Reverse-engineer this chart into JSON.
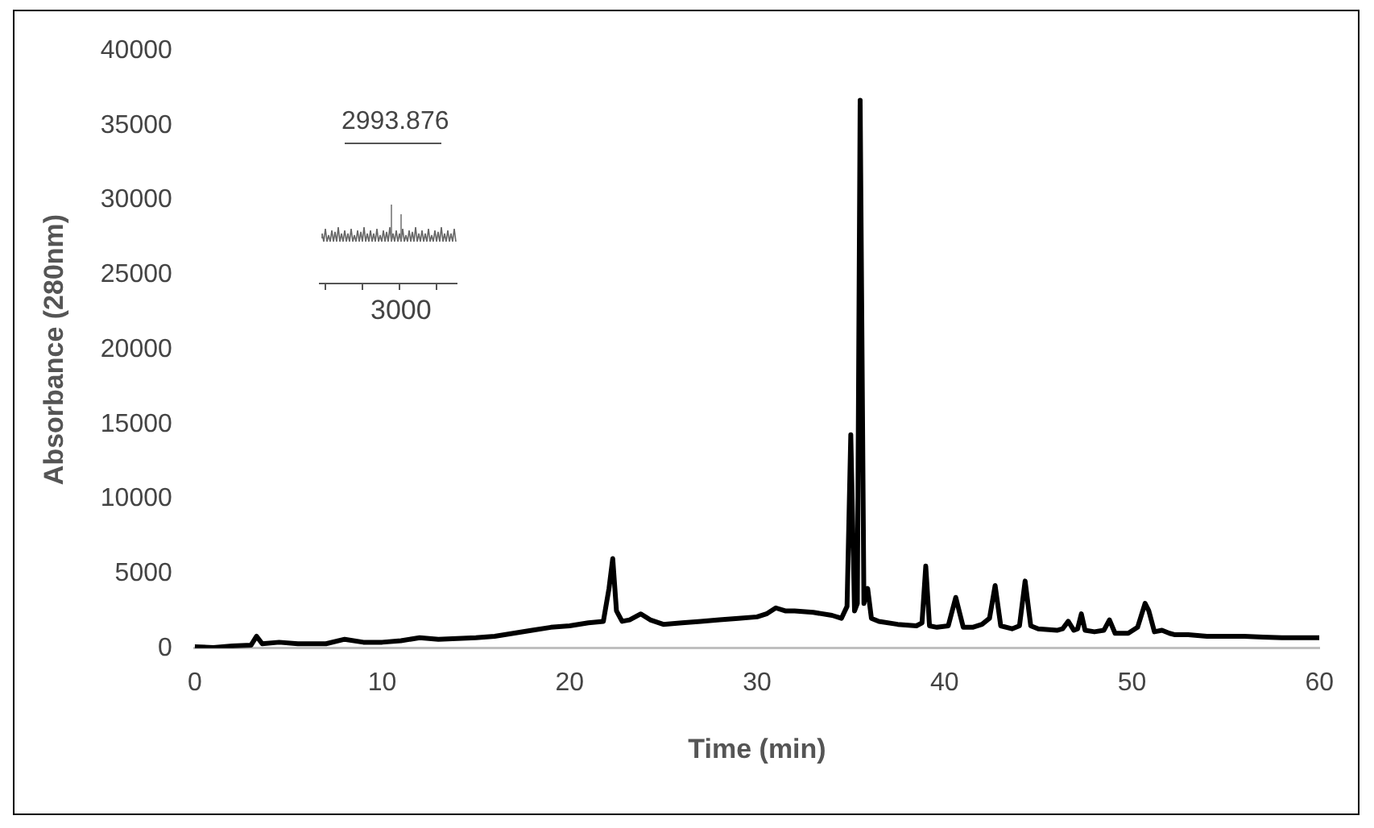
{
  "chart_data": {
    "type": "line",
    "xlabel": "Time (min)",
    "ylabel": "Absorbance (280nm)",
    "x": [
      0,
      1,
      2,
      3,
      3.3,
      3.6,
      4.5,
      5.5,
      7,
      8,
      9,
      10,
      11,
      12,
      13,
      14,
      15,
      16,
      17,
      18,
      19,
      20,
      21,
      21.8,
      22.1,
      22.3,
      22.5,
      22.8,
      23.2,
      23.8,
      24.3,
      25,
      26,
      27,
      28,
      29,
      30,
      30.5,
      31,
      31.5,
      32,
      33,
      34,
      34.5,
      34.8,
      35,
      35.2,
      35.35,
      35.5,
      35.7,
      35.9,
      36.1,
      36.5,
      37.5,
      38.5,
      38.8,
      39,
      39.2,
      39.6,
      40.2,
      40.6,
      41,
      41.5,
      42,
      42.4,
      42.7,
      43,
      43.6,
      44,
      44.3,
      44.6,
      45,
      46,
      46.3,
      46.6,
      46.9,
      47.1,
      47.3,
      47.5,
      48,
      48.5,
      48.8,
      49.1,
      49.8,
      50.3,
      50.7,
      50.9,
      51.2,
      51.6,
      52,
      52.3,
      53,
      54,
      55,
      56,
      57,
      58,
      59,
      60
    ],
    "values": [
      100,
      50,
      150,
      200,
      800,
      300,
      400,
      300,
      300,
      600,
      400,
      400,
      500,
      700,
      600,
      650,
      700,
      800,
      1000,
      1200,
      1400,
      1500,
      1700,
      1800,
      4000,
      6000,
      2500,
      1800,
      1900,
      2300,
      1900,
      1600,
      1700,
      1800,
      1900,
      2000,
      2100,
      2300,
      2700,
      2500,
      2500,
      2400,
      2200,
      2000,
      2800,
      14300,
      2500,
      3000,
      36700,
      3000,
      4000,
      2000,
      1800,
      1600,
      1500,
      1700,
      5500,
      1500,
      1400,
      1500,
      3400,
      1400,
      1400,
      1600,
      2000,
      4200,
      1500,
      1300,
      1500,
      4500,
      1500,
      1300,
      1200,
      1300,
      1800,
      1200,
      1300,
      2300,
      1200,
      1100,
      1200,
      1900,
      1000,
      1000,
      1400,
      3000,
      2500,
      1100,
      1200,
      1000,
      900,
      900,
      800,
      800,
      800,
      750,
      700,
      700,
      700
    ],
    "color": "#000000",
    "ylim": [
      0,
      40000
    ],
    "yticks": [
      0,
      5000,
      10000,
      15000,
      20000,
      25000,
      30000,
      35000,
      40000
    ],
    "xlim": [
      0,
      60
    ],
    "xticks": [
      0,
      10,
      20,
      30,
      40,
      50,
      60
    ],
    "grid": false,
    "legend": false,
    "marker": "none",
    "line_style": "solid",
    "annotations": [
      "2993.876",
      "3000"
    ]
  }
}
